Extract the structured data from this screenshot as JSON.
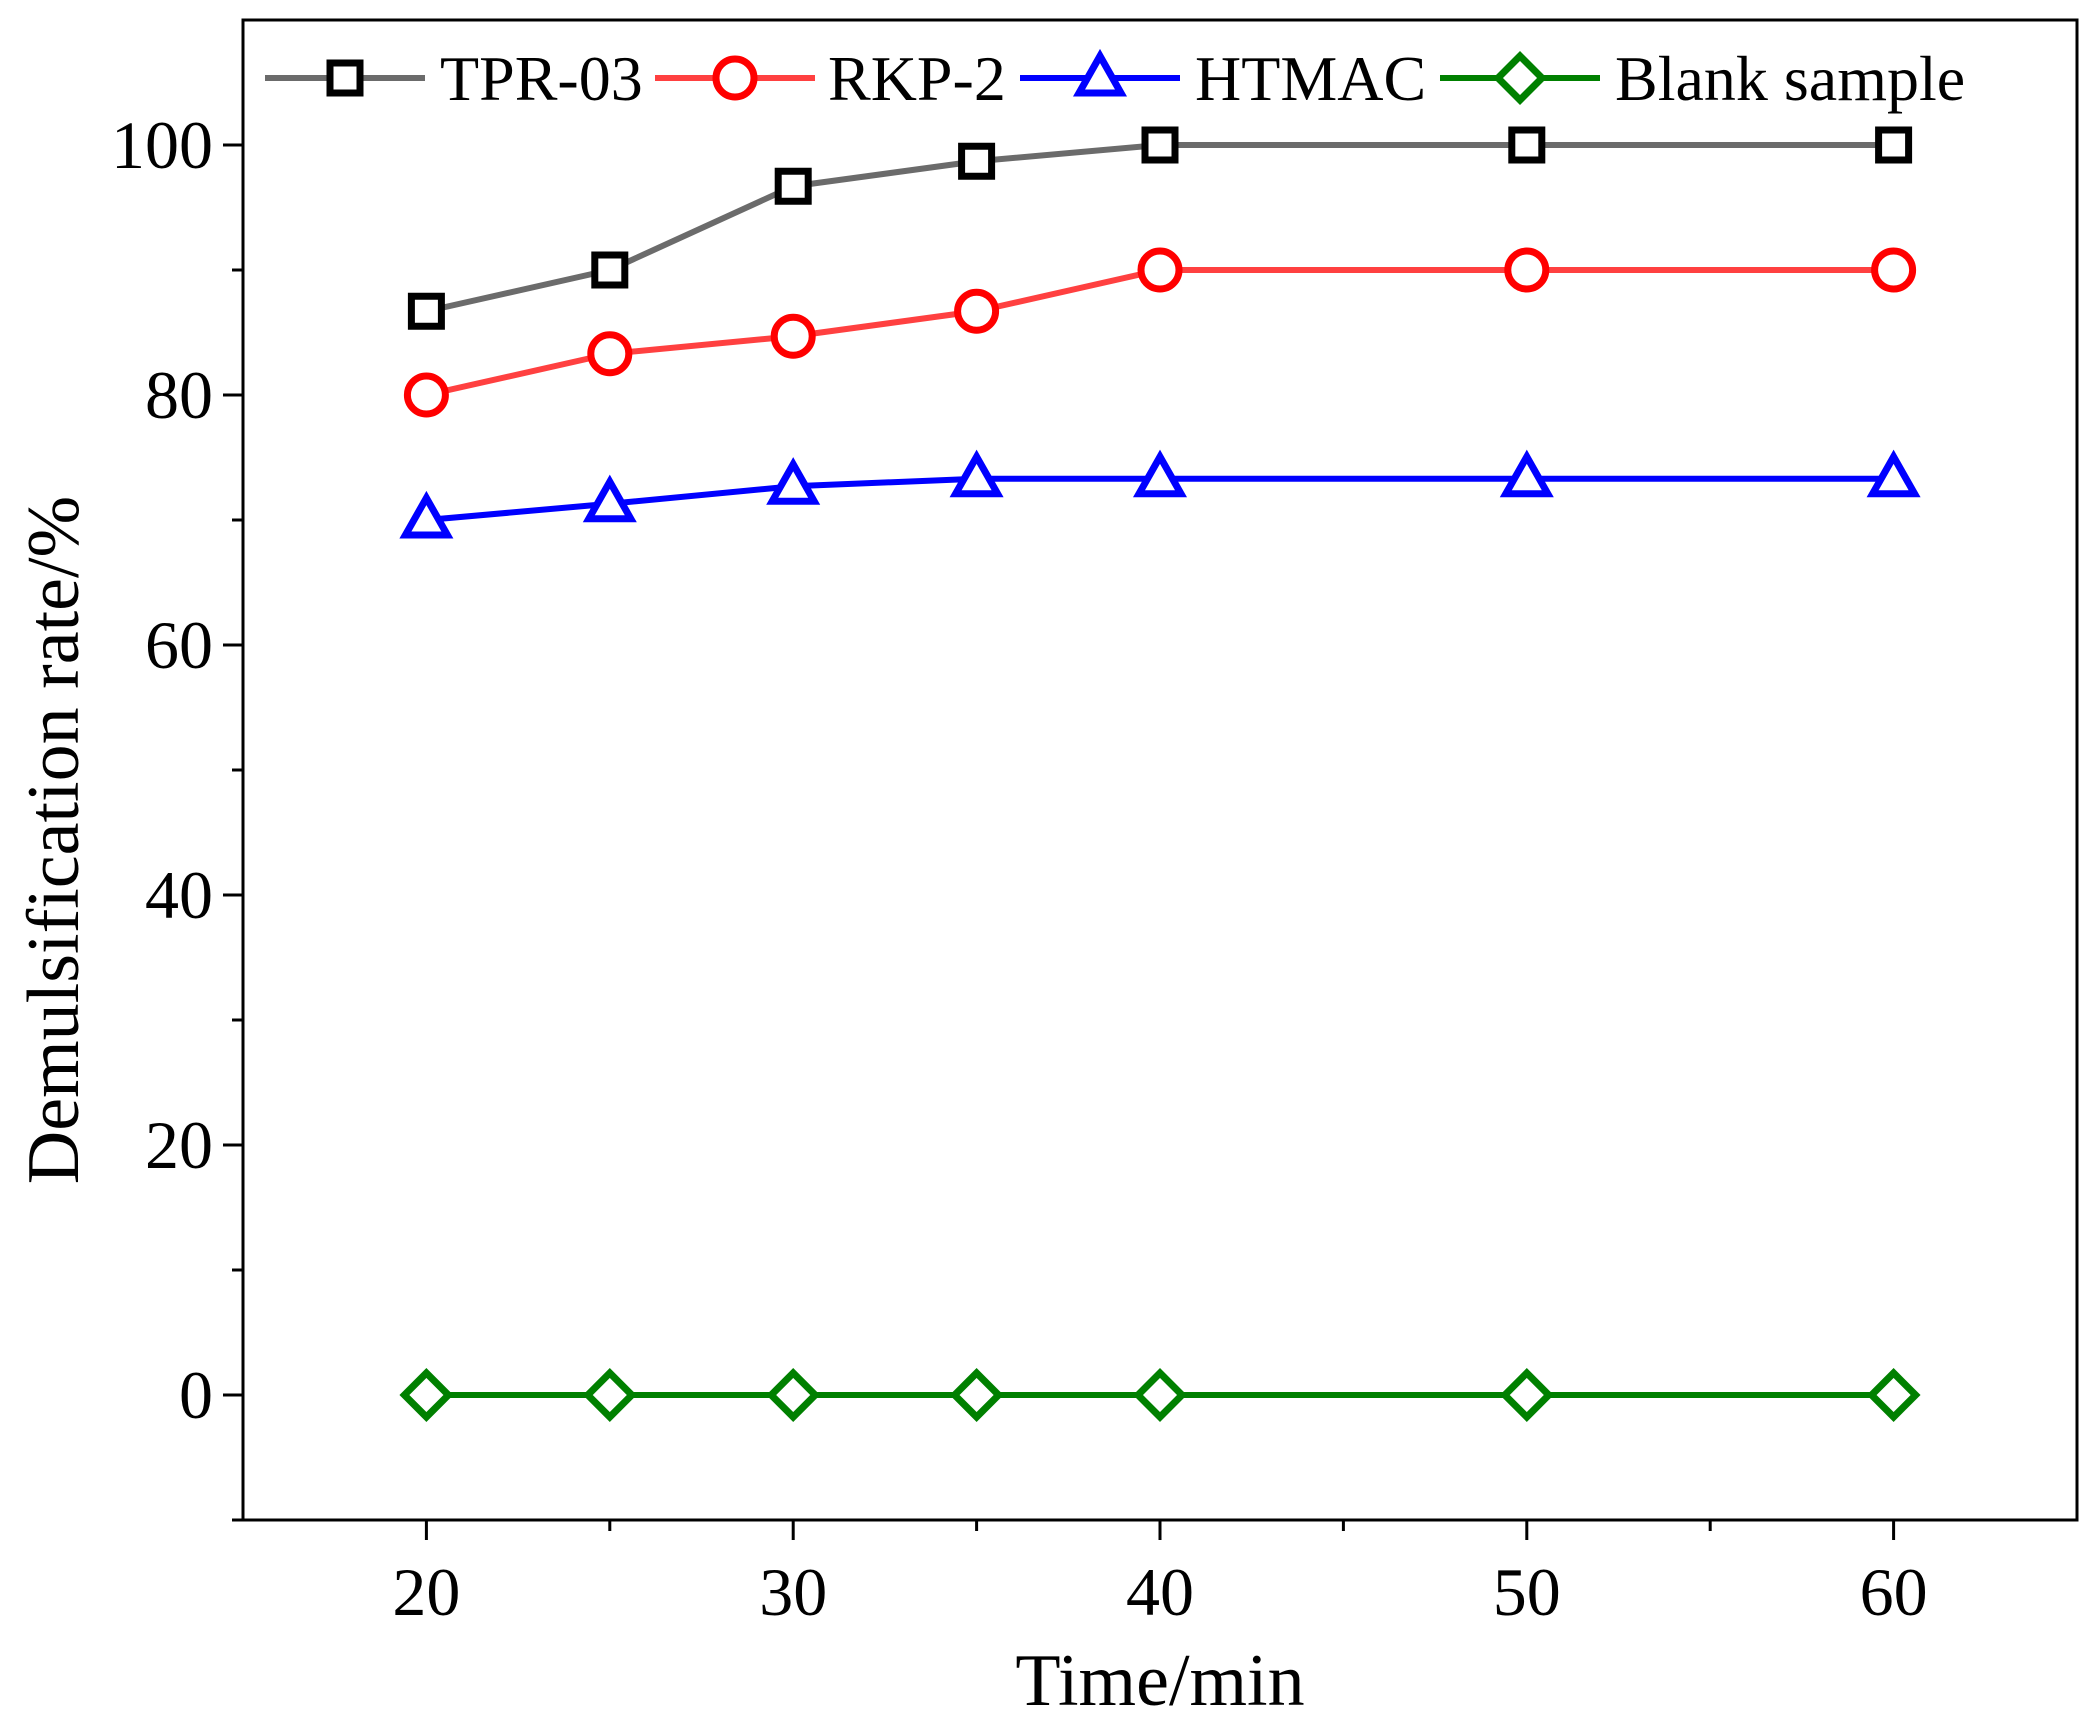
{
  "chart_data": {
    "type": "line",
    "title": "",
    "xlabel": "Time/min",
    "ylabel": "Demulsification rate/%",
    "xlim": [
      15,
      65
    ],
    "ylim": [
      -10,
      110
    ],
    "x_ticks": [
      20,
      30,
      40,
      50,
      60
    ],
    "x_minor_ticks": [
      25,
      35,
      45,
      55
    ],
    "y_ticks": [
      0,
      20,
      40,
      60,
      80,
      100
    ],
    "y_minor_ticks": [
      -10,
      10,
      30,
      50,
      70,
      90
    ],
    "grid": false,
    "legend_position": "top",
    "x": [
      20,
      25,
      30,
      35,
      40,
      50,
      60
    ],
    "series": [
      {
        "name": "TPR-03",
        "marker": "square",
        "line_color": "#6b6b6b",
        "marker_color": "#000000",
        "values": [
          86.7,
          90.0,
          96.7,
          98.7,
          100.0,
          100.0,
          100.0
        ]
      },
      {
        "name": "RKP-2",
        "marker": "circle",
        "line_color": "#ff4040",
        "marker_color": "#ff0000",
        "values": [
          80.0,
          83.3,
          84.7,
          86.7,
          90.0,
          90.0,
          90.0
        ]
      },
      {
        "name": "HTMAC",
        "marker": "triangle",
        "line_color": "#0000ff",
        "marker_color": "#0000ff",
        "values": [
          70.0,
          71.3,
          72.7,
          73.3,
          73.3,
          73.3,
          73.3
        ]
      },
      {
        "name": "Blank sample",
        "marker": "diamond",
        "line_color": "#008000",
        "marker_color": "#008000",
        "values": [
          0,
          0,
          0,
          0,
          0,
          0,
          0
        ]
      }
    ]
  }
}
